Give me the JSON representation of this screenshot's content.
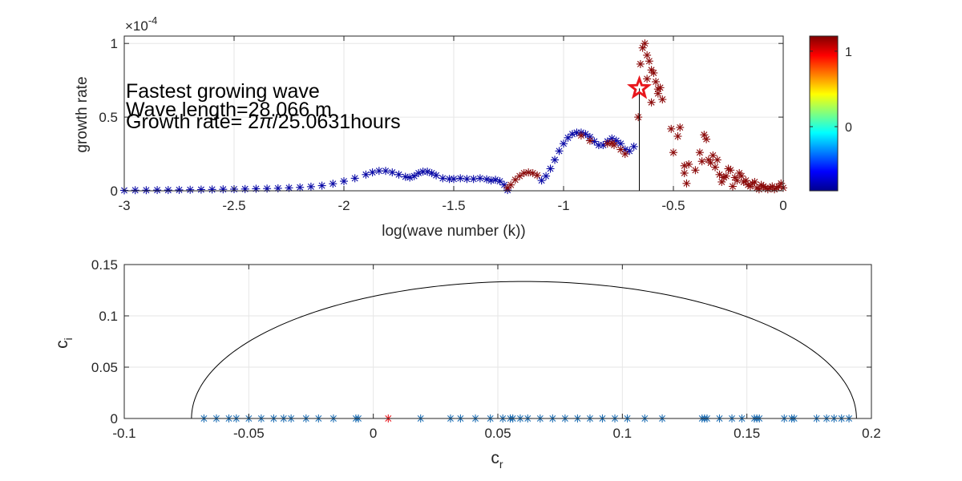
{
  "chart_data": [
    {
      "type": "scatter",
      "xlabel": "log(wave number (k))",
      "ylabel": "growth rate",
      "exponent_label": "×10",
      "exponent_power": "-4",
      "xlim": [
        -3,
        0
      ],
      "ylim": [
        0,
        1.05
      ],
      "xticks": [
        -3,
        -2.5,
        -2,
        -1.5,
        -1,
        -0.5,
        0
      ],
      "xtick_labels": [
        "-3",
        "-2.5",
        "-2",
        "-1.5",
        "-1",
        "-0.5",
        "0"
      ],
      "yticks": [
        0,
        0.5,
        1
      ],
      "ytick_labels": [
        "0",
        "0.5",
        "1"
      ],
      "grid": true,
      "marker": "asterisk",
      "annotations": {
        "line1": "Fastest growing wave",
        "line2": "Wave length=28.066 m",
        "line3_prefix": "Growth rate= 2",
        "line3_pi": "π",
        "line3_suffix": "/25.0631hours"
      },
      "fastest": {
        "x": -0.655,
        "y": 0.695,
        "marker": "star",
        "color": "#e8171d"
      },
      "colorbar": {
        "range": [
          -0.85,
          1.2
        ],
        "ticks": [
          0,
          1
        ],
        "tick_labels": [
          "0",
          "1"
        ],
        "colormap": "jet"
      },
      "segments": [
        {
          "color": "#0a0aa6",
          "points": [
            [
              -3.0,
              0.003
            ],
            [
              -2.95,
              0.004
            ],
            [
              -2.9,
              0.004
            ],
            [
              -2.85,
              0.005
            ],
            [
              -2.8,
              0.005
            ],
            [
              -2.75,
              0.006
            ],
            [
              -2.7,
              0.007
            ],
            [
              -2.65,
              0.008
            ],
            [
              -2.6,
              0.009
            ],
            [
              -2.55,
              0.01
            ],
            [
              -2.5,
              0.011
            ],
            [
              -2.45,
              0.012
            ],
            [
              -2.4,
              0.014
            ],
            [
              -2.35,
              0.015
            ],
            [
              -2.3,
              0.017
            ],
            [
              -2.25,
              0.02
            ],
            [
              -2.2,
              0.023
            ],
            [
              -2.15,
              0.028
            ],
            [
              -2.1,
              0.035
            ],
            [
              -2.05,
              0.048
            ],
            [
              -2.0,
              0.065
            ],
            [
              -1.95,
              0.085
            ],
            [
              -1.9,
              0.11
            ],
            [
              -1.87,
              0.125
            ],
            [
              -1.84,
              0.135
            ],
            [
              -1.81,
              0.135
            ],
            [
              -1.78,
              0.125
            ],
            [
              -1.75,
              0.11
            ],
            [
              -1.72,
              0.095
            ],
            [
              -1.7,
              0.09
            ],
            [
              -1.68,
              0.1
            ],
            [
              -1.66,
              0.12
            ],
            [
              -1.64,
              0.13
            ],
            [
              -1.62,
              0.13
            ],
            [
              -1.6,
              0.12
            ],
            [
              -1.58,
              0.105
            ],
            [
              -1.55,
              0.085
            ],
            [
              -1.52,
              0.08
            ],
            [
              -1.5,
              0.08
            ],
            [
              -1.47,
              0.085
            ],
            [
              -1.44,
              0.08
            ],
            [
              -1.41,
              0.08
            ],
            [
              -1.38,
              0.085
            ],
            [
              -1.35,
              0.078
            ],
            [
              -1.33,
              0.07
            ],
            [
              -1.31,
              0.075
            ],
            [
              -1.29,
              0.065
            ],
            [
              -1.27,
              0.04
            ],
            [
              -1.255,
              0.005
            ]
          ]
        },
        {
          "color": "#8b0b0b",
          "points": [
            [
              -1.255,
              0.02
            ],
            [
              -1.24,
              0.04
            ],
            [
              -1.22,
              0.075
            ],
            [
              -1.2,
              0.1
            ],
            [
              -1.18,
              0.12
            ],
            [
              -1.16,
              0.125
            ],
            [
              -1.14,
              0.12
            ],
            [
              -1.12,
              0.105
            ]
          ]
        },
        {
          "color": "#0a0aa6",
          "points": [
            [
              -1.1,
              0.07
            ],
            [
              -1.08,
              0.1
            ],
            [
              -1.06,
              0.15
            ],
            [
              -1.04,
              0.21
            ],
            [
              -1.02,
              0.27
            ],
            [
              -1.0,
              0.32
            ],
            [
              -0.98,
              0.36
            ],
            [
              -0.96,
              0.385
            ],
            [
              -0.94,
              0.395
            ],
            [
              -0.92,
              0.395
            ],
            [
              -0.9,
              0.385
            ],
            [
              -0.88,
              0.365
            ],
            [
              -0.86,
              0.335
            ],
            [
              -0.84,
              0.31
            ],
            [
              -0.82,
              0.31
            ],
            [
              -0.8,
              0.335
            ],
            [
              -0.78,
              0.355
            ],
            [
              -0.76,
              0.34
            ],
            [
              -0.74,
              0.32
            ],
            [
              -0.72,
              0.28
            ],
            [
              -0.7,
              0.27
            ],
            [
              -0.68,
              0.3
            ]
          ]
        },
        {
          "color": "#8b0b0b",
          "points": [
            [
              -0.92,
              0.375
            ],
            [
              -0.88,
              0.34
            ],
            [
              -0.8,
              0.32
            ],
            [
              -0.78,
              0.325
            ],
            [
              -0.77,
              0.31
            ],
            [
              -0.74,
              0.28
            ],
            [
              -0.72,
              0.25
            ],
            [
              -0.64,
              0.97
            ],
            [
              -0.63,
              1.0
            ],
            [
              -0.62,
              0.92
            ],
            [
              -0.61,
              0.88
            ],
            [
              -0.6,
              0.82
            ],
            [
              -0.59,
              0.8
            ],
            [
              -0.58,
              0.74
            ],
            [
              -0.57,
              0.69
            ],
            [
              -0.56,
              0.7
            ],
            [
              -0.55,
              0.62
            ],
            [
              -0.66,
              0.5
            ],
            [
              -0.65,
              0.86
            ],
            [
              -0.62,
              0.76
            ],
            [
              -0.6,
              0.6
            ],
            [
              -0.57,
              0.66
            ],
            [
              -0.51,
              0.42
            ],
            [
              -0.5,
              0.26
            ],
            [
              -0.48,
              0.37
            ],
            [
              -0.47,
              0.43
            ],
            [
              -0.45,
              0.12
            ],
            [
              -0.45,
              0.17
            ],
            [
              -0.44,
              0.05
            ],
            [
              -0.43,
              0.18
            ],
            [
              -0.4,
              0.14
            ],
            [
              -0.38,
              0.26
            ],
            [
              -0.37,
              0.2
            ],
            [
              -0.36,
              0.38
            ],
            [
              -0.35,
              0.35
            ],
            [
              -0.34,
              0.21
            ],
            [
              -0.33,
              0.19
            ],
            [
              -0.32,
              0.24
            ],
            [
              -0.31,
              0.16
            ],
            [
              -0.3,
              0.21
            ],
            [
              -0.29,
              0.11
            ],
            [
              -0.28,
              0.06
            ],
            [
              -0.27,
              0.09
            ],
            [
              -0.26,
              0.1
            ],
            [
              -0.25,
              0.15
            ],
            [
              -0.24,
              0.14
            ],
            [
              -0.23,
              0.03
            ],
            [
              -0.22,
              0.09
            ],
            [
              -0.21,
              0.07
            ],
            [
              -0.2,
              0.12
            ],
            [
              -0.19,
              0.1
            ],
            [
              -0.18,
              0.06
            ],
            [
              -0.17,
              0.07
            ],
            [
              -0.16,
              0.04
            ],
            [
              -0.15,
              0.03
            ],
            [
              -0.14,
              0.05
            ],
            [
              -0.13,
              0.06
            ],
            [
              -0.12,
              0.02
            ],
            [
              -0.11,
              0.01
            ],
            [
              -0.1,
              0.04
            ],
            [
              -0.09,
              0.03
            ],
            [
              -0.08,
              0.02
            ],
            [
              -0.07,
              0.01
            ],
            [
              -0.06,
              0.02
            ],
            [
              -0.05,
              0.03
            ],
            [
              -0.04,
              0.01
            ],
            [
              -0.03,
              0.02
            ],
            [
              -0.02,
              0.03
            ],
            [
              -0.01,
              0.05
            ],
            [
              0.0,
              0.02
            ]
          ]
        }
      ]
    },
    {
      "type": "scatter",
      "xlabel": "c",
      "xlabel_sub": "r",
      "ylabel": "c",
      "ylabel_sub": "i",
      "xlim": [
        -0.1,
        0.2
      ],
      "ylim": [
        0,
        0.15
      ],
      "xticks": [
        -0.1,
        -0.05,
        0,
        0.05,
        0.1,
        0.15,
        0.2
      ],
      "xtick_labels": [
        "-0.1",
        "-0.05",
        "0",
        "0.05",
        "0.1",
        "0.15",
        "0.2"
      ],
      "yticks": [
        0,
        0.05,
        0.1,
        0.15
      ],
      "ytick_labels": [
        "0",
        "0.05",
        "0.1",
        "0.15"
      ],
      "grid": true,
      "semicircle": {
        "center": 0.0605,
        "radius": 0.1335,
        "peak": 0.1335,
        "color": "#000000"
      },
      "series": [
        {
          "color": "#1f6fb4",
          "marker": "asterisk",
          "x": [
            -0.068,
            -0.063,
            -0.058,
            -0.055,
            -0.05,
            -0.045,
            -0.04,
            -0.036,
            -0.033,
            -0.027,
            -0.022,
            -0.016,
            -0.007,
            -0.006,
            0.019,
            0.031,
            0.035,
            0.041,
            0.047,
            0.052,
            0.055,
            0.056,
            0.059,
            0.062,
            0.067,
            0.072,
            0.077,
            0.082,
            0.087,
            0.092,
            0.097,
            0.102,
            0.109,
            0.116,
            0.132,
            0.133,
            0.134,
            0.139,
            0.144,
            0.148,
            0.153,
            0.154,
            0.155,
            0.165,
            0.168,
            0.169,
            0.178,
            0.182,
            0.185,
            0.188,
            0.191
          ],
          "y": [
            0,
            0,
            0,
            0,
            0,
            0,
            0,
            0,
            0,
            0,
            0,
            0,
            0,
            0,
            0,
            0,
            0,
            0,
            0,
            0,
            0,
            0,
            0,
            0,
            0,
            0,
            0,
            0,
            0,
            0,
            0,
            0,
            0,
            0,
            0,
            0,
            0,
            0,
            0,
            0,
            0,
            0,
            0,
            0,
            0,
            0,
            0,
            0,
            0,
            0,
            0
          ]
        },
        {
          "color": "#e8171d",
          "marker": "asterisk",
          "x": [
            0.006
          ],
          "y": [
            0
          ]
        }
      ]
    }
  ]
}
